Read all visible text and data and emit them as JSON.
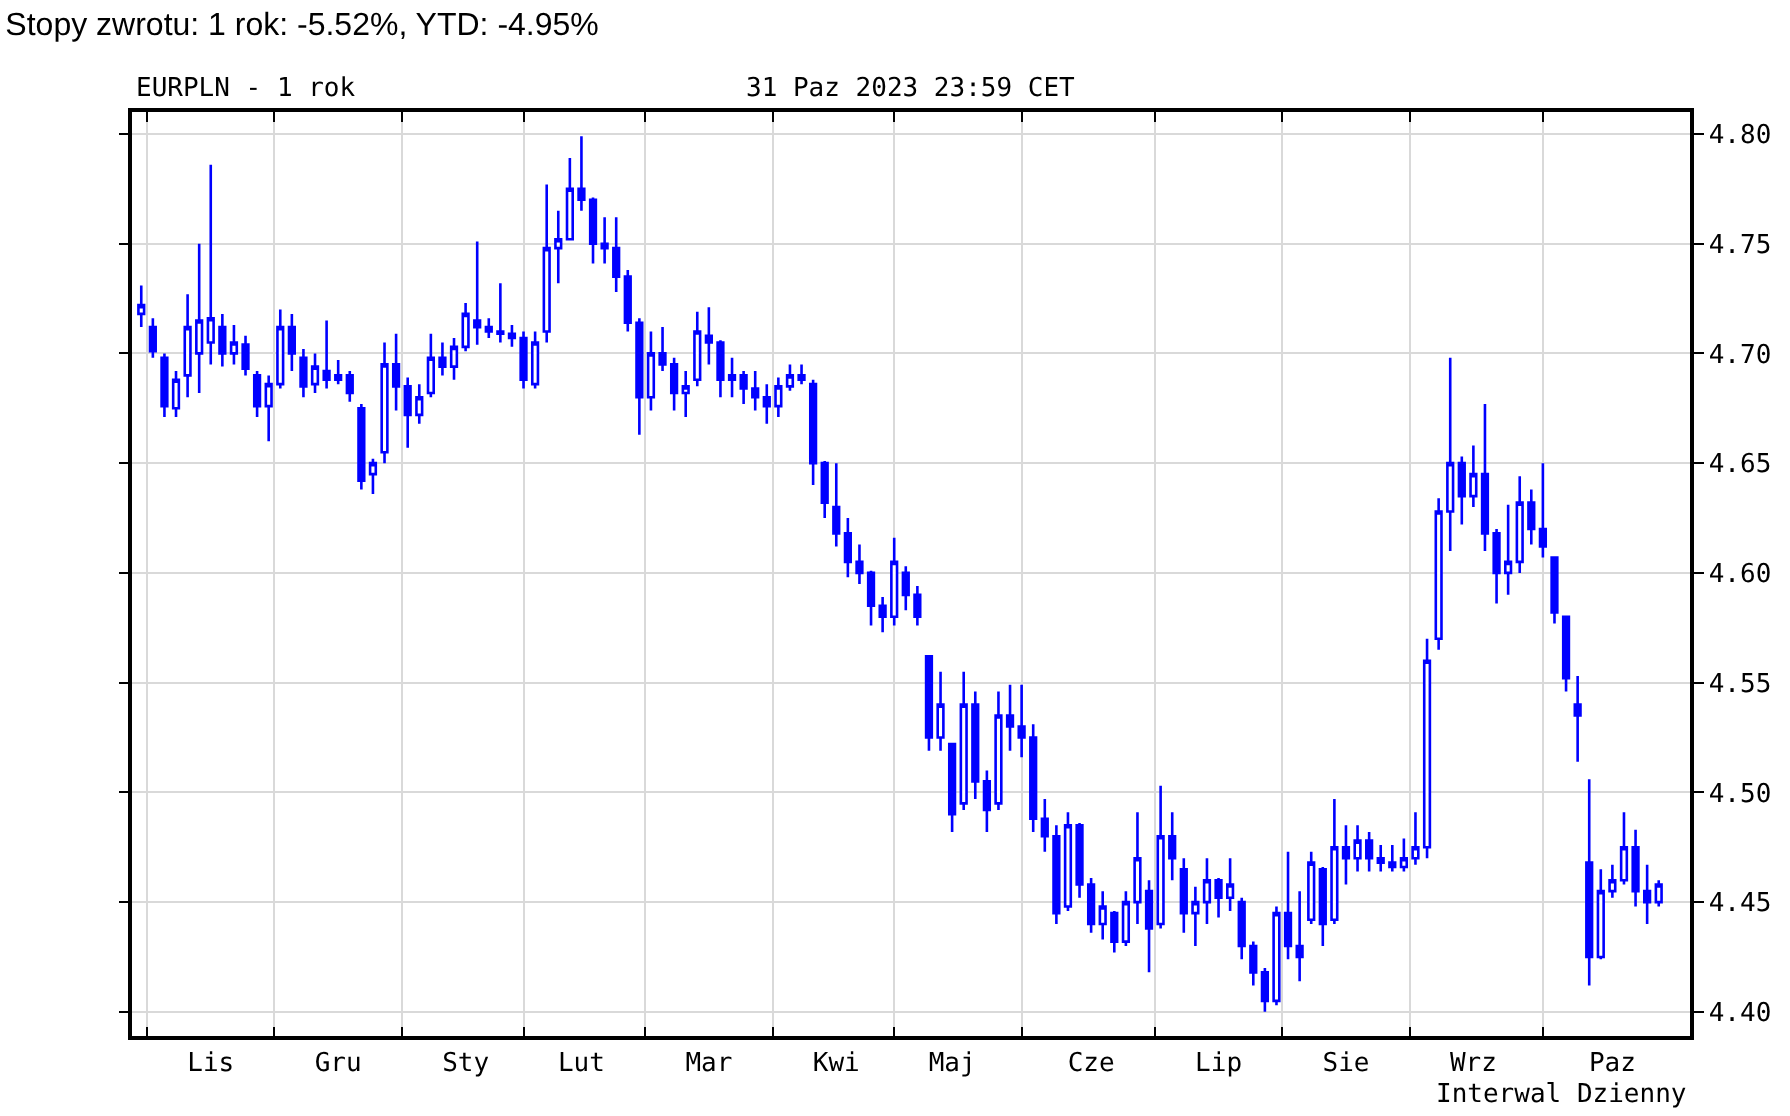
{
  "chart_data": {
    "type": "candlestick",
    "title": "Stopy zwrotu: 1 rok: -5.52%, YTD: -4.95%",
    "subtitle": "EURPLN - 1 rok",
    "annotations": [
      "31 Paz 2023 23:59 CET",
      "Interwal Dzienny"
    ],
    "color": "#0000ff",
    "grid": true,
    "ylim": [
      4.389,
      4.81
    ],
    "yticks": [
      {
        "value": 4.4,
        "label": "4.40"
      },
      {
        "value": 4.45,
        "label": "4.45"
      },
      {
        "value": 4.5,
        "label": "4.50"
      },
      {
        "value": 4.55,
        "label": "4.55"
      },
      {
        "value": 4.6,
        "label": "4.60"
      },
      {
        "value": 4.65,
        "label": "4.65"
      },
      {
        "value": 4.7,
        "label": "4.70"
      },
      {
        "value": 4.75,
        "label": "4.75"
      },
      {
        "value": 4.8,
        "label": "4.80"
      }
    ],
    "categories": [
      null,
      null,
      null,
      null,
      null,
      null,
      "Lis",
      null,
      null,
      null,
      null,
      null,
      null,
      null,
      null,
      null,
      null,
      "Gru",
      null,
      null,
      null,
      null,
      null,
      null,
      null,
      null,
      null,
      null,
      "Sty",
      null,
      null,
      null,
      null,
      null,
      null,
      null,
      null,
      null,
      "Lut",
      null,
      null,
      null,
      null,
      null,
      null,
      null,
      null,
      null,
      null,
      "Mar",
      null,
      null,
      null,
      null,
      null,
      null,
      null,
      null,
      null,
      null,
      "Kwi",
      null,
      null,
      null,
      null,
      null,
      null,
      null,
      null,
      null,
      "Maj",
      null,
      null,
      null,
      null,
      null,
      null,
      null,
      null,
      null,
      null,
      null,
      "Cze",
      null,
      null,
      null,
      null,
      null,
      null,
      null,
      null,
      null,
      null,
      "Lip",
      null,
      null,
      null,
      null,
      null,
      null,
      null,
      null,
      null,
      null,
      "Sie",
      null,
      null,
      null,
      null,
      null,
      null,
      null,
      null,
      null,
      null,
      "Wrz",
      null,
      null,
      null,
      null,
      null,
      null,
      null,
      null,
      null,
      null,
      null,
      "Paz",
      null,
      null,
      null,
      null
    ],
    "ohlc": [
      [
        4.718,
        4.731,
        4.712,
        4.722
      ],
      [
        4.712,
        4.716,
        4.698,
        4.701
      ],
      [
        4.698,
        4.7,
        4.671,
        4.676
      ],
      [
        4.675,
        4.692,
        4.671,
        4.688
      ],
      [
        4.69,
        4.727,
        4.68,
        4.712
      ],
      [
        4.7,
        4.75,
        4.682,
        4.715
      ],
      [
        4.705,
        4.786,
        4.695,
        4.716
      ],
      [
        4.712,
        4.718,
        4.694,
        4.7
      ],
      [
        4.7,
        4.713,
        4.695,
        4.705
      ],
      [
        4.704,
        4.708,
        4.69,
        4.693
      ],
      [
        4.69,
        4.692,
        4.671,
        4.676
      ],
      [
        4.676,
        4.69,
        4.66,
        4.686
      ],
      [
        4.686,
        4.72,
        4.684,
        4.712
      ],
      [
        4.712,
        4.718,
        4.692,
        4.7
      ],
      [
        4.698,
        4.702,
        4.68,
        4.685
      ],
      [
        4.686,
        4.7,
        4.682,
        4.694
      ],
      [
        4.692,
        4.715,
        4.684,
        4.688
      ],
      [
        4.688,
        4.697,
        4.686,
        4.69
      ],
      [
        4.69,
        4.692,
        4.678,
        4.682
      ],
      [
        4.675,
        4.677,
        4.638,
        4.642
      ],
      [
        4.645,
        4.652,
        4.636,
        4.65
      ],
      [
        4.655,
        4.705,
        4.65,
        4.695
      ],
      [
        4.695,
        4.709,
        4.674,
        4.685
      ],
      [
        4.685,
        4.689,
        4.657,
        4.672
      ],
      [
        4.672,
        4.686,
        4.668,
        4.68
      ],
      [
        4.682,
        4.709,
        4.68,
        4.698
      ],
      [
        4.698,
        4.705,
        4.69,
        4.694
      ],
      [
        4.694,
        4.707,
        4.688,
        4.703
      ],
      [
        4.703,
        4.723,
        4.701,
        4.718
      ],
      [
        4.715,
        4.751,
        4.704,
        4.712
      ],
      [
        4.712,
        4.716,
        4.707,
        4.71
      ],
      [
        4.71,
        4.732,
        4.705,
        4.709
      ],
      [
        4.709,
        4.713,
        4.703,
        4.707
      ],
      [
        4.707,
        4.71,
        4.684,
        4.688
      ],
      [
        4.686,
        4.71,
        4.684,
        4.705
      ],
      [
        4.71,
        4.777,
        4.705,
        4.748
      ],
      [
        4.748,
        4.765,
        4.732,
        4.752
      ],
      [
        4.752,
        4.789,
        4.752,
        4.775
      ],
      [
        4.775,
        4.799,
        4.765,
        4.77
      ],
      [
        4.77,
        4.771,
        4.741,
        4.75
      ],
      [
        4.75,
        4.762,
        4.741,
        4.748
      ],
      [
        4.748,
        4.762,
        4.728,
        4.735
      ],
      [
        4.735,
        4.738,
        4.71,
        4.714
      ],
      [
        4.714,
        4.716,
        4.663,
        4.68
      ],
      [
        4.68,
        4.71,
        4.674,
        4.7
      ],
      [
        4.7,
        4.712,
        4.692,
        4.695
      ],
      [
        4.695,
        4.698,
        4.674,
        4.682
      ],
      [
        4.682,
        4.692,
        4.671,
        4.685
      ],
      [
        4.688,
        4.719,
        4.685,
        4.71
      ],
      [
        4.708,
        4.721,
        4.695,
        4.705
      ],
      [
        4.705,
        4.706,
        4.68,
        4.688
      ],
      [
        4.688,
        4.698,
        4.68,
        4.69
      ],
      [
        4.69,
        4.692,
        4.677,
        4.684
      ],
      [
        4.684,
        4.692,
        4.674,
        4.68
      ],
      [
        4.68,
        4.686,
        4.668,
        4.676
      ],
      [
        4.676,
        4.689,
        4.671,
        4.685
      ],
      [
        4.685,
        4.695,
        4.683,
        4.69
      ],
      [
        4.69,
        4.695,
        4.686,
        4.688
      ],
      [
        4.686,
        4.688,
        4.64,
        4.65
      ],
      [
        4.65,
        4.651,
        4.625,
        4.632
      ],
      [
        4.63,
        4.65,
        4.612,
        4.618
      ],
      [
        4.618,
        4.625,
        4.598,
        4.605
      ],
      [
        4.605,
        4.613,
        4.595,
        4.6
      ],
      [
        4.6,
        4.601,
        4.576,
        4.585
      ],
      [
        4.585,
        4.589,
        4.573,
        4.58
      ],
      [
        4.58,
        4.616,
        4.576,
        4.605
      ],
      [
        4.6,
        4.603,
        4.583,
        4.59
      ],
      [
        4.59,
        4.594,
        4.576,
        4.58
      ],
      [
        4.562,
        4.562,
        4.519,
        4.525
      ],
      [
        4.525,
        4.555,
        4.519,
        4.54
      ],
      [
        4.522,
        4.522,
        4.482,
        4.49
      ],
      [
        4.495,
        4.555,
        4.492,
        4.54
      ],
      [
        4.54,
        4.546,
        4.497,
        4.505
      ],
      [
        4.505,
        4.51,
        4.482,
        4.492
      ],
      [
        4.495,
        4.546,
        4.492,
        4.535
      ],
      [
        4.535,
        4.549,
        4.519,
        4.53
      ],
      [
        4.53,
        4.549,
        4.516,
        4.525
      ],
      [
        4.525,
        4.531,
        4.482,
        4.488
      ],
      [
        4.488,
        4.497,
        4.473,
        4.48
      ],
      [
        4.48,
        4.485,
        4.44,
        4.445
      ],
      [
        4.448,
        4.491,
        4.446,
        4.485
      ],
      [
        4.485,
        4.486,
        4.452,
        4.458
      ],
      [
        4.458,
        4.461,
        4.436,
        4.44
      ],
      [
        4.44,
        4.455,
        4.433,
        4.448
      ],
      [
        4.445,
        4.446,
        4.427,
        4.432
      ],
      [
        4.432,
        4.455,
        4.43,
        4.45
      ],
      [
        4.45,
        4.491,
        4.44,
        4.47
      ],
      [
        4.455,
        4.46,
        4.418,
        4.438
      ],
      [
        4.44,
        4.503,
        4.438,
        4.48
      ],
      [
        4.48,
        4.491,
        4.46,
        4.47
      ],
      [
        4.465,
        4.47,
        4.436,
        4.445
      ],
      [
        4.445,
        4.457,
        4.43,
        4.45
      ],
      [
        4.45,
        4.47,
        4.44,
        4.46
      ],
      [
        4.46,
        4.461,
        4.443,
        4.452
      ],
      [
        4.452,
        4.47,
        4.446,
        4.458
      ],
      [
        4.45,
        4.452,
        4.424,
        4.43
      ],
      [
        4.43,
        4.432,
        4.412,
        4.418
      ],
      [
        4.418,
        4.42,
        4.4,
        4.405
      ],
      [
        4.405,
        4.448,
        4.403,
        4.445
      ],
      [
        4.445,
        4.473,
        4.424,
        4.43
      ],
      [
        4.43,
        4.455,
        4.414,
        4.425
      ],
      [
        4.442,
        4.473,
        4.44,
        4.468
      ],
      [
        4.465,
        4.466,
        4.43,
        4.44
      ],
      [
        4.442,
        4.497,
        4.44,
        4.475
      ],
      [
        4.475,
        4.485,
        4.458,
        4.47
      ],
      [
        4.47,
        4.485,
        4.464,
        4.478
      ],
      [
        4.478,
        4.482,
        4.464,
        4.47
      ],
      [
        4.47,
        4.476,
        4.464,
        4.468
      ],
      [
        4.468,
        4.476,
        4.464,
        4.466
      ],
      [
        4.466,
        4.479,
        4.464,
        4.47
      ],
      [
        4.47,
        4.491,
        4.467,
        4.475
      ],
      [
        4.475,
        4.57,
        4.47,
        4.56
      ],
      [
        4.57,
        4.634,
        4.565,
        4.628
      ],
      [
        4.628,
        4.698,
        4.61,
        4.65
      ],
      [
        4.65,
        4.653,
        4.622,
        4.635
      ],
      [
        4.635,
        4.658,
        4.63,
        4.645
      ],
      [
        4.645,
        4.677,
        4.61,
        4.618
      ],
      [
        4.618,
        4.62,
        4.586,
        4.6
      ],
      [
        4.6,
        4.631,
        4.59,
        4.605
      ],
      [
        4.605,
        4.644,
        4.6,
        4.632
      ],
      [
        4.632,
        4.638,
        4.613,
        4.62
      ],
      [
        4.62,
        4.65,
        4.607,
        4.612
      ],
      [
        4.607,
        4.607,
        4.577,
        4.582
      ],
      [
        4.58,
        4.58,
        4.546,
        4.552
      ],
      [
        4.54,
        4.553,
        4.514,
        4.535
      ],
      [
        4.468,
        4.506,
        4.412,
        4.425
      ],
      [
        4.425,
        4.465,
        4.424,
        4.455
      ],
      [
        4.455,
        4.467,
        4.452,
        4.46
      ],
      [
        4.46,
        4.491,
        4.458,
        4.475
      ],
      [
        4.475,
        4.483,
        4.448,
        4.455
      ],
      [
        4.455,
        4.467,
        4.44,
        4.45
      ],
      [
        4.45,
        4.46,
        4.448,
        4.458
      ]
    ]
  }
}
